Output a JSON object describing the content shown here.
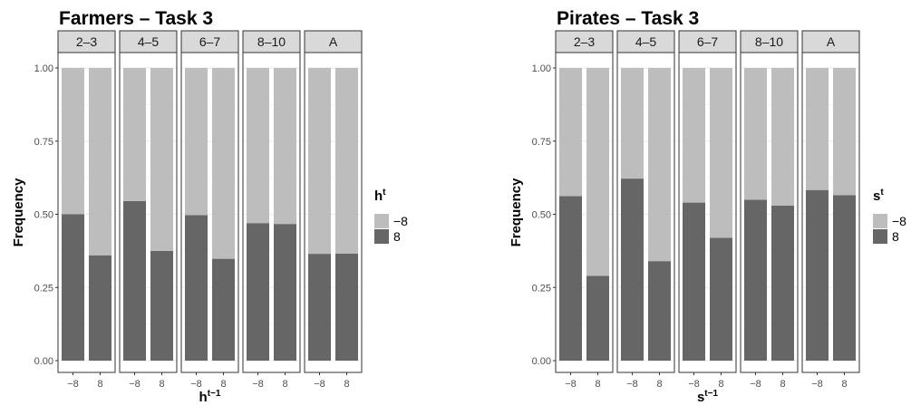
{
  "chart_data": [
    {
      "type": "bar",
      "stacked": true,
      "title": "Farmers – Task 3",
      "ylabel": "Frequency",
      "xlabel": {
        "base": "h",
        "sup": "t−1"
      },
      "ylim": [
        0,
        1
      ],
      "yticks": [
        "0.00",
        "0.25",
        "0.50",
        "0.75",
        "1.00"
      ],
      "facets": [
        "2–3",
        "4–5",
        "6–7",
        "8–10",
        "A"
      ],
      "categories": [
        "−8",
        "8"
      ],
      "legend": {
        "title": {
          "base": "h",
          "sup": "t"
        },
        "position": "right",
        "items": [
          {
            "label": "−8",
            "color": "#bdbdbd"
          },
          {
            "label": "8",
            "color": "#666666"
          }
        ]
      },
      "series": [
        {
          "name": "8",
          "color": "#666666",
          "values": [
            [
              0.5,
              0.36
            ],
            [
              0.545,
              0.375
            ],
            [
              0.497,
              0.348
            ],
            [
              0.47,
              0.467
            ],
            [
              0.365,
              0.366
            ]
          ]
        },
        {
          "name": "−8",
          "color": "#bdbdbd",
          "values": [
            [
              0.5,
              0.64
            ],
            [
              0.455,
              0.625
            ],
            [
              0.503,
              0.652
            ],
            [
              0.53,
              0.533
            ],
            [
              0.635,
              0.634
            ]
          ]
        }
      ],
      "grid": true
    },
    {
      "type": "bar",
      "stacked": true,
      "title": "Pirates – Task 3",
      "ylabel": "Frequency",
      "xlabel": {
        "base": "s",
        "sup": "t−1"
      },
      "ylim": [
        0,
        1
      ],
      "yticks": [
        "0.00",
        "0.25",
        "0.50",
        "0.75",
        "1.00"
      ],
      "facets": [
        "2–3",
        "4–5",
        "6–7",
        "8–10",
        "A"
      ],
      "categories": [
        "−8",
        "8"
      ],
      "legend": {
        "title": {
          "base": "s",
          "sup": "t"
        },
        "position": "right",
        "items": [
          {
            "label": "−8",
            "color": "#bdbdbd"
          },
          {
            "label": "8",
            "color": "#666666"
          }
        ]
      },
      "series": [
        {
          "name": "8",
          "color": "#666666",
          "values": [
            [
              0.562,
              0.29
            ],
            [
              0.622,
              0.34
            ],
            [
              0.54,
              0.42
            ],
            [
              0.55,
              0.53
            ],
            [
              0.583,
              0.565
            ]
          ]
        },
        {
          "name": "−8",
          "color": "#bdbdbd",
          "values": [
            [
              0.438,
              0.71
            ],
            [
              0.378,
              0.66
            ],
            [
              0.46,
              0.58
            ],
            [
              0.45,
              0.47
            ],
            [
              0.417,
              0.435
            ]
          ]
        }
      ],
      "grid": true
    }
  ]
}
